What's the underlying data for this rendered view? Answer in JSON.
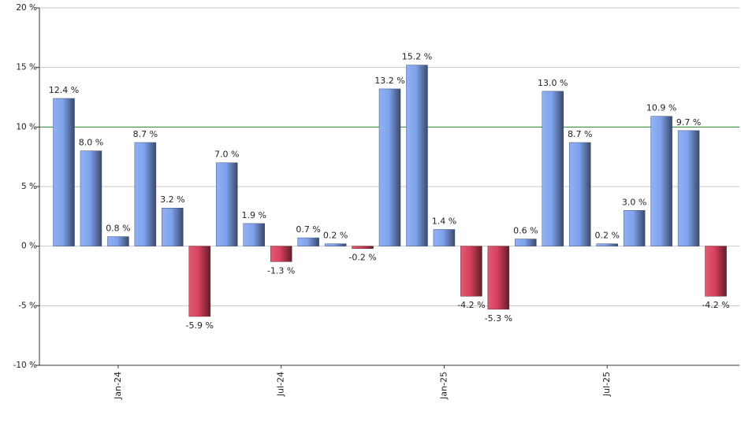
{
  "chart_data": {
    "type": "bar",
    "categories": [
      null,
      null,
      "Jan-24",
      null,
      null,
      null,
      null,
      null,
      "Jul-24",
      null,
      null,
      null,
      null,
      null,
      "Jan-25",
      null,
      null,
      null,
      null,
      null,
      "Jul-25",
      null,
      null,
      null,
      null
    ],
    "values": [
      12.4,
      8.0,
      0.8,
      8.7,
      3.2,
      -5.9,
      7.0,
      1.9,
      -1.3,
      0.7,
      0.2,
      -0.2,
      13.2,
      15.2,
      1.4,
      -4.2,
      -5.3,
      0.6,
      13.0,
      8.7,
      0.2,
      3.0,
      10.9,
      9.7,
      -4.2
    ],
    "value_labels": [
      "12.4 %",
      "8.0 %",
      "0.8 %",
      "8.7 %",
      "3.2 %",
      "-5.9 %",
      "7.0 %",
      "1.9 %",
      "-1.3 %",
      "0.7 %",
      "0.2 %",
      "-0.2 %",
      "13.2 %",
      "15.2 %",
      "1.4 %",
      "-4.2 %",
      "-5.3 %",
      "0.6 %",
      "13.0 %",
      "8.7 %",
      "0.2 %",
      "3.0 %",
      "10.9 %",
      "9.7 %",
      "-4.2 %"
    ],
    "color": "#7fa3ee",
    "negative_color": "#d8405c",
    "ylim": [
      -10,
      20
    ],
    "yticks": [
      {
        "value": -10,
        "label": "-10 %"
      },
      {
        "value": -5,
        "label": "-5 %"
      },
      {
        "value": 0,
        "label": "0 %"
      },
      {
        "value": 5,
        "label": "5 %"
      },
      {
        "value": 10,
        "label": "10 %"
      },
      {
        "value": 15,
        "label": "15 %"
      },
      {
        "value": 20,
        "label": "20 %"
      }
    ],
    "grid": true,
    "reference_line": {
      "value": 10,
      "color": "#2e8b2e"
    }
  }
}
